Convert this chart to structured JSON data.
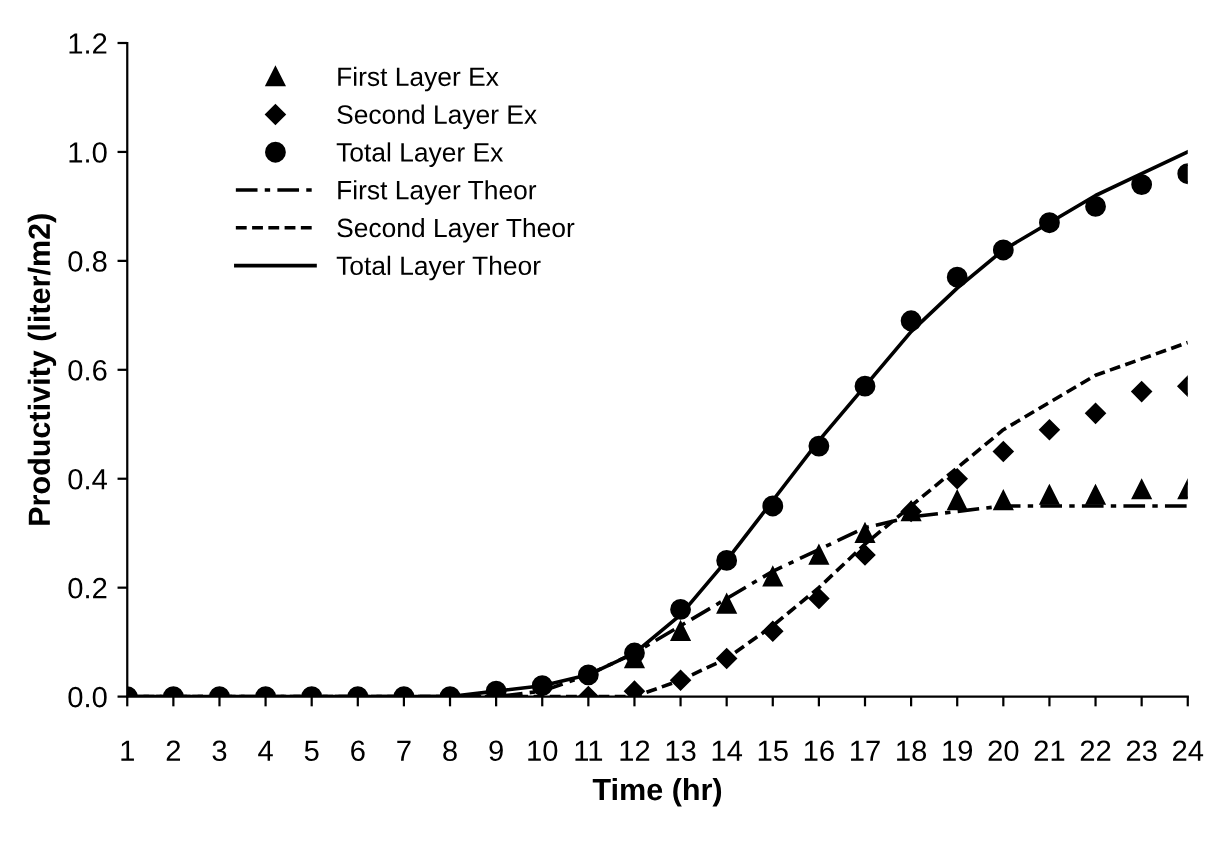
{
  "chart_data": {
    "type": "line",
    "xlabel": "Time (hr)",
    "ylabel": "Productivity (liter/m2)",
    "x": [
      1,
      2,
      3,
      4,
      5,
      6,
      7,
      8,
      9,
      10,
      11,
      12,
      13,
      14,
      15,
      16,
      17,
      18,
      19,
      20,
      21,
      22,
      23,
      24
    ],
    "xlim": [
      1,
      24
    ],
    "xticks": [
      1,
      2,
      3,
      4,
      5,
      6,
      7,
      8,
      9,
      10,
      11,
      12,
      13,
      14,
      15,
      16,
      17,
      18,
      19,
      20,
      21,
      22,
      23,
      24
    ],
    "ylim": [
      0,
      1.2
    ],
    "yticks": [
      {
        "value": 0,
        "label": "0.0"
      },
      {
        "value": 0.2,
        "label": "0.2"
      },
      {
        "value": 0.4,
        "label": "0.4"
      },
      {
        "value": 0.6,
        "label": "0.6"
      },
      {
        "value": 0.8,
        "label": "0.8"
      },
      {
        "value": 1.0,
        "label": "1.0"
      },
      {
        "value": 1.2,
        "label": "1.2"
      }
    ],
    "grid": false,
    "legend": "top left",
    "series": [
      {
        "name": "First Layer Ex",
        "type": "scatter",
        "marker": "triangle",
        "color": "#000000",
        "values": [
          null,
          null,
          null,
          null,
          null,
          null,
          null,
          null,
          null,
          null,
          null,
          0.07,
          0.12,
          0.17,
          0.22,
          0.26,
          0.3,
          0.34,
          0.36,
          0.36,
          0.37,
          0.37,
          0.38,
          0.38
        ]
      },
      {
        "name": "Second Layer Ex",
        "type": "scatter",
        "marker": "diamond",
        "color": "#000000",
        "values": [
          null,
          null,
          null,
          null,
          null,
          null,
          null,
          null,
          null,
          null,
          0,
          0.01,
          0.03,
          0.07,
          0.12,
          0.18,
          0.26,
          0.34,
          0.4,
          0.45,
          0.49,
          0.52,
          0.56,
          0.57
        ]
      },
      {
        "name": "Total Layer Ex",
        "type": "scatter",
        "marker": "circle",
        "color": "#000000",
        "values": [
          0,
          0,
          0,
          0,
          0,
          0,
          0,
          0,
          0.01,
          0.02,
          0.04,
          0.08,
          0.16,
          0.25,
          0.35,
          0.46,
          0.57,
          0.69,
          0.77,
          0.82,
          0.87,
          0.9,
          0.94,
          0.96
        ]
      },
      {
        "name": "First Layer Theor",
        "type": "line",
        "line_style": "dashdot",
        "color": "#000000",
        "values": [
          0,
          0,
          0,
          0,
          0,
          0,
          0,
          0,
          0,
          0.01,
          0.04,
          0.08,
          0.13,
          0.18,
          0.23,
          0.27,
          0.31,
          0.33,
          0.34,
          0.35,
          0.35,
          0.35,
          0.35,
          0.35
        ]
      },
      {
        "name": "Second Layer Theor",
        "type": "line",
        "line_style": "dashed",
        "color": "#000000",
        "values": [
          0,
          0,
          0,
          0,
          0,
          0,
          0,
          0,
          0,
          0,
          0,
          0,
          0.03,
          0.07,
          0.13,
          0.2,
          0.28,
          0.35,
          0.42,
          0.49,
          0.54,
          0.59,
          0.62,
          0.65
        ]
      },
      {
        "name": "Total Layer Theor",
        "type": "line",
        "line_style": "solid",
        "color": "#000000",
        "values": [
          0,
          0,
          0,
          0,
          0,
          0,
          0,
          0,
          0.01,
          0.02,
          0.04,
          0.08,
          0.15,
          0.25,
          0.36,
          0.47,
          0.57,
          0.67,
          0.75,
          0.82,
          0.87,
          0.92,
          0.96,
          1.0
        ]
      }
    ]
  }
}
